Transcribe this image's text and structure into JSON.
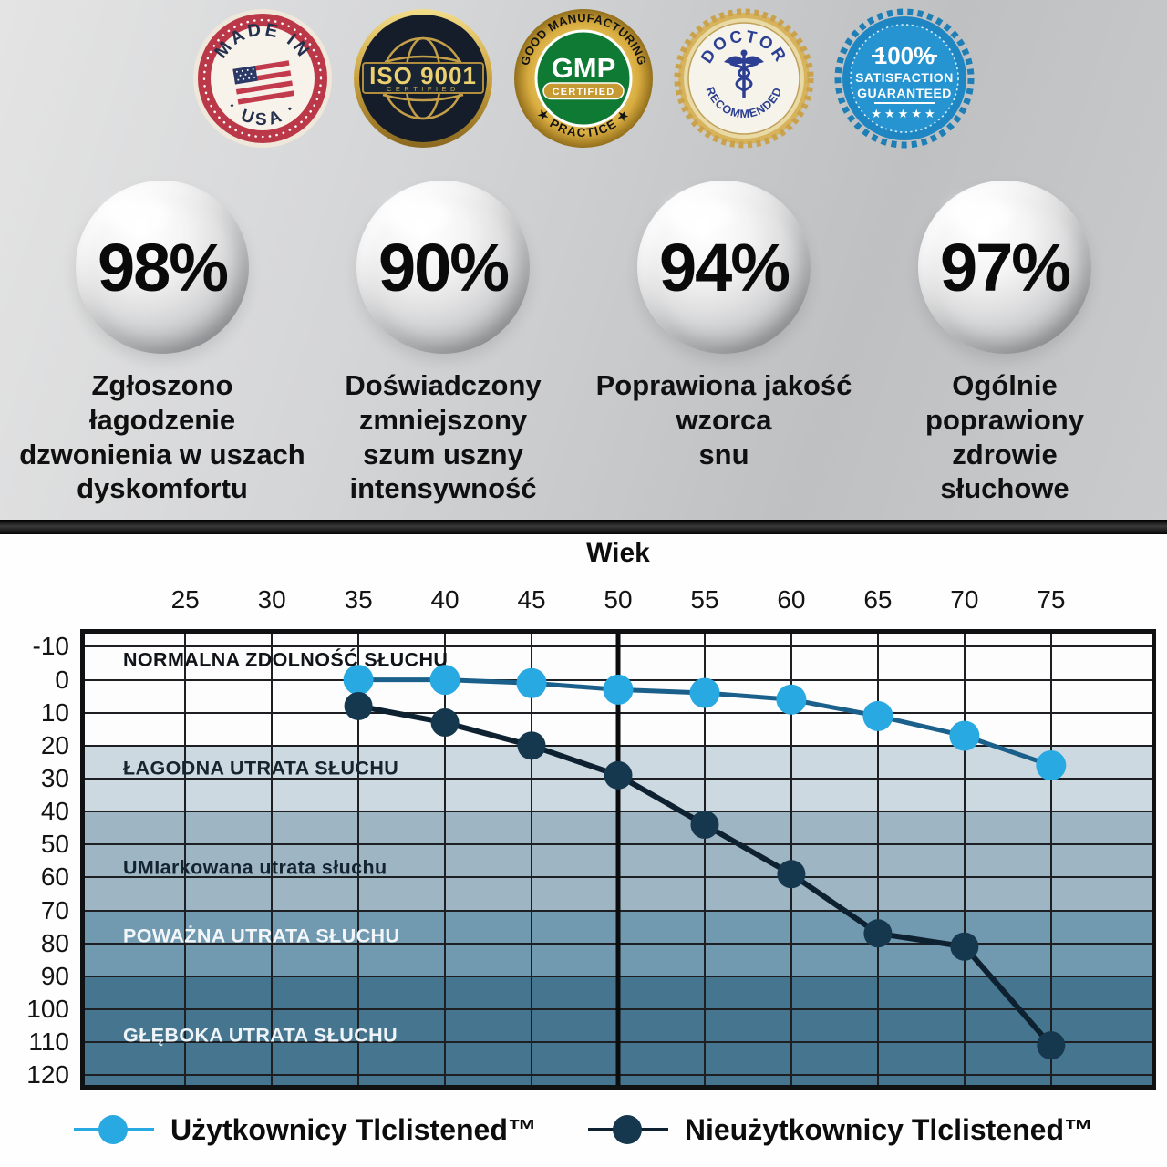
{
  "colors": {
    "usa_red": "#bb3849",
    "gmp_green": "#0f7a33",
    "doctor_blue": "#2c3f92",
    "satisfaction_blue": "#1e86c3",
    "gold": "#caa23f",
    "users_blue": "#29a9e2",
    "nonusers_navy": "#16384e"
  },
  "badges": [
    {
      "arc_top": "MADE IN",
      "arc_bottom": "· USA ·"
    },
    {
      "title": "ISO 9001",
      "subtitle": "CERTIFIED"
    },
    {
      "arc_top": "GOOD MANUFACTURING",
      "center": "GMP",
      "band": "CERTIFIED",
      "arc_bottom": "★ PRACTICE ★"
    },
    {
      "arc_top": "DOCTOR",
      "arc_bottom": "RECOMMENDED"
    },
    {
      "value": "100%",
      "line2": "SATISFACTION",
      "line3": "GUARANTEED",
      "stars": "★★★★★"
    }
  ],
  "stats": [
    {
      "value": "98%",
      "caption": "Zgłoszono\nłagodzenie\ndzwonienia w uszach\ndyskomfortu"
    },
    {
      "value": "90%",
      "caption": "Doświadczony\nzmniejszony\nszum uszny\nintensywność"
    },
    {
      "value": "94%",
      "caption": "Poprawiona jakość\nwzorca\nsnu"
    },
    {
      "value": "97%",
      "caption": "Ogólnie\npoprawiony\nzdrowie\nsłuchowe"
    }
  ],
  "chart_data": {
    "type": "line",
    "title": "Wiek",
    "xlabel": "Wiek",
    "ylabel": "",
    "x_ticks": [
      25,
      30,
      35,
      40,
      45,
      50,
      55,
      60,
      65,
      70,
      75
    ],
    "y_ticks": [
      -10,
      0,
      10,
      20,
      30,
      40,
      50,
      60,
      70,
      80,
      90,
      100,
      110,
      120
    ],
    "x_range": [
      19.2,
      80.8
    ],
    "y_range": [
      -14,
      123
    ],
    "emphasis_x": 50,
    "grid": true,
    "legend_position": "bottom",
    "series": [
      {
        "name": "Użytkownicy Tlclistened™",
        "color": "#29a9e2",
        "line_color": "#1b608b",
        "legend_line": "#29a9e2",
        "x": [
          35,
          40,
          45,
          50,
          55,
          60,
          65,
          70,
          75
        ],
        "values": [
          0,
          0,
          1,
          3,
          4,
          6,
          11,
          17,
          26
        ]
      },
      {
        "name": "Nieużytkownicy Tlclistened™",
        "color": "#16384e",
        "line_color": "#0d2131",
        "legend_line": "#0e2130",
        "x": [
          35,
          40,
          45,
          50,
          55,
          60,
          65,
          70,
          75
        ],
        "values": [
          8,
          13,
          20,
          29,
          44,
          59,
          77,
          81,
          111
        ]
      }
    ],
    "zones": [
      {
        "label": "NORMALNA ZDOLNOŚĆ SŁUCHU",
        "from": -14,
        "to": 20,
        "label_y": -6,
        "color": "#fdfdfd",
        "text_color": "#101418"
      },
      {
        "label": "ŁAGODNA UTRATA SŁUCHU",
        "from": 20,
        "to": 40,
        "label_y": 27,
        "color": "#cdd9e1",
        "text_color": "#15242f"
      },
      {
        "label": "UMIarkowana utrata słuchu",
        "from": 40,
        "to": 70,
        "label_y": 57,
        "color": "#9eb6c4",
        "text_color": "#132430"
      },
      {
        "label": "POWAŻNA UTRATA SŁUCHU",
        "from": 70,
        "to": 90,
        "label_y": 78,
        "color": "#7199b0",
        "text_color": "#f2f6f9"
      },
      {
        "label": "GŁĘBOKA UTRATA SŁUCHU",
        "from": 90,
        "to": 123,
        "label_y": 108,
        "color": "#45758f",
        "text_color": "#eef4f8"
      }
    ]
  }
}
